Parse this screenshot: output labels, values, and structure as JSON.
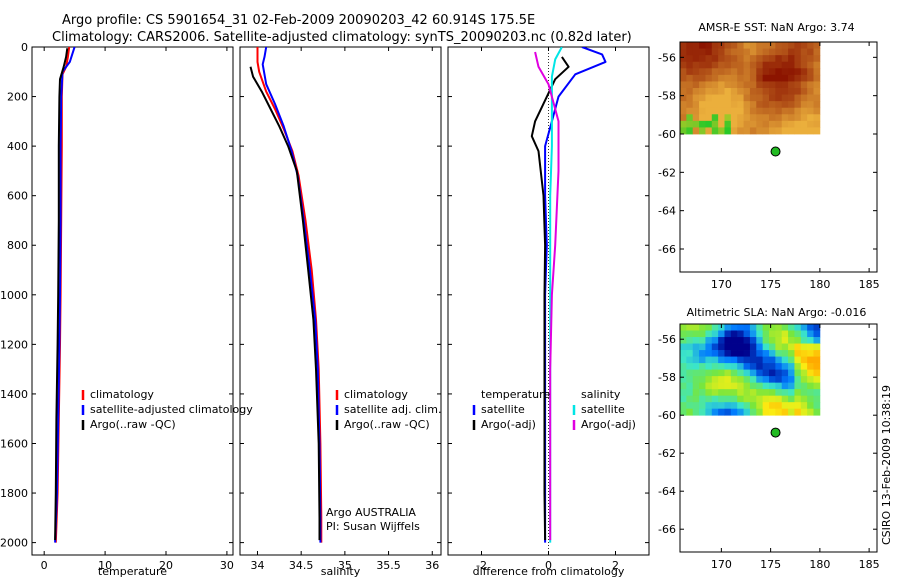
{
  "title_line1": "Argo profile: CS 5901654_31 02-Feb-2009 20090203_42 60.914S 175.5E",
  "title_line2": "Climatology: CARS2006. Satellite-adjusted climatology: synTS_20090203.nc (0.82d later)",
  "footer": "CSIRO 13-Feb-2009 10:38:19",
  "colors": {
    "red": "#ff0000",
    "blue": "#0000ff",
    "black": "#000000",
    "cyan": "#00e5e5",
    "magenta": "#e000e0",
    "dot": "#22bb22"
  },
  "chart_data": [
    {
      "type": "line",
      "id": "temperature",
      "xlabel": "temperature",
      "xlim": [
        -2,
        31
      ],
      "ylim": [
        2050,
        0
      ],
      "xticks": [
        0,
        10,
        20,
        30
      ],
      "yticks": [
        0,
        200,
        400,
        600,
        800,
        1000,
        1200,
        1400,
        1600,
        1800,
        2000
      ],
      "legend": [
        "climatology",
        "satellite-adjusted climatology",
        "Argo(..raw -QC)"
      ],
      "series": [
        {
          "name": "climatology",
          "color": "red",
          "points": [
            [
              4.1,
              0
            ],
            [
              3.9,
              40
            ],
            [
              3.6,
              80
            ],
            [
              3.0,
              110
            ],
            [
              2.9,
              200
            ],
            [
              2.9,
              400
            ],
            [
              2.8,
              700
            ],
            [
              2.7,
              1000
            ],
            [
              2.6,
              1200
            ],
            [
              2.4,
              1500
            ],
            [
              2.2,
              1800
            ],
            [
              1.9,
              2000
            ]
          ]
        },
        {
          "name": "satellite-adjusted climatology",
          "color": "blue",
          "points": [
            [
              5.0,
              0
            ],
            [
              4.6,
              30
            ],
            [
              4.2,
              60
            ],
            [
              3.0,
              100
            ],
            [
              2.8,
              200
            ],
            [
              2.7,
              400
            ],
            [
              2.7,
              700
            ],
            [
              2.6,
              1000
            ],
            [
              2.5,
              1200
            ],
            [
              2.3,
              1500
            ],
            [
              2.1,
              1800
            ],
            [
              1.8,
              2000
            ]
          ]
        },
        {
          "name": "Argo(..raw -QC)",
          "color": "black",
          "points": [
            [
              3.8,
              5
            ],
            [
              3.6,
              40
            ],
            [
              3.2,
              80
            ],
            [
              2.6,
              130
            ],
            [
              2.5,
              200
            ],
            [
              2.4,
              400
            ],
            [
              2.4,
              700
            ],
            [
              2.3,
              1000
            ],
            [
              2.2,
              1200
            ],
            [
              2.0,
              1500
            ],
            [
              1.9,
              1800
            ],
            [
              1.8,
              1990
            ]
          ]
        }
      ]
    },
    {
      "type": "line",
      "id": "salinity",
      "xlabel": "salinity",
      "xlim": [
        33.8,
        36.1
      ],
      "ylim": [
        2050,
        0
      ],
      "xticks": [
        34,
        34.5,
        35,
        35.5,
        36
      ],
      "legend": [
        "climatology",
        "satellite adj. clim.",
        "Argo(..raw -QC)"
      ],
      "annotation": [
        "Argo AUSTRALIA",
        "PI: Susan Wijffels"
      ],
      "series": [
        {
          "name": "climatology",
          "color": "red",
          "points": [
            [
              34.0,
              0
            ],
            [
              34.0,
              60
            ],
            [
              34.02,
              100
            ],
            [
              34.1,
              180
            ],
            [
              34.2,
              250
            ],
            [
              34.3,
              330
            ],
            [
              34.4,
              420
            ],
            [
              34.47,
              520
            ],
            [
              34.55,
              700
            ],
            [
              34.62,
              900
            ],
            [
              34.67,
              1100
            ],
            [
              34.7,
              1300
            ],
            [
              34.72,
              1600
            ],
            [
              34.73,
              1900
            ],
            [
              34.73,
              2000
            ]
          ]
        },
        {
          "name": "satellite adj. clim.",
          "color": "blue",
          "points": [
            [
              34.1,
              0
            ],
            [
              34.08,
              40
            ],
            [
              34.06,
              70
            ],
            [
              34.1,
              150
            ],
            [
              34.2,
              230
            ],
            [
              34.3,
              320
            ],
            [
              34.39,
              420
            ],
            [
              34.46,
              520
            ],
            [
              34.53,
              700
            ],
            [
              34.6,
              900
            ],
            [
              34.66,
              1100
            ],
            [
              34.69,
              1300
            ],
            [
              34.71,
              1600
            ],
            [
              34.72,
              1900
            ],
            [
              34.72,
              2000
            ]
          ]
        },
        {
          "name": "Argo(..raw -QC)",
          "color": "black",
          "points": [
            [
              33.92,
              80
            ],
            [
              33.95,
              120
            ],
            [
              34.05,
              180
            ],
            [
              34.15,
              250
            ],
            [
              34.25,
              320
            ],
            [
              34.35,
              400
            ],
            [
              34.45,
              500
            ],
            [
              34.52,
              700
            ],
            [
              34.58,
              900
            ],
            [
              34.64,
              1100
            ],
            [
              34.67,
              1300
            ],
            [
              34.7,
              1600
            ],
            [
              34.71,
              1900
            ],
            [
              34.71,
              1990
            ]
          ]
        }
      ]
    },
    {
      "type": "line",
      "id": "difference",
      "xlabel": "difference from climatology",
      "xlim": [
        -3,
        3
      ],
      "ylim": [
        2050,
        0
      ],
      "xticks": [
        -2,
        0,
        2
      ],
      "legend_left": [
        "temperature",
        "satellite",
        "Argo(-adj)"
      ],
      "legend_right": [
        "salinity",
        "satellite",
        "Argo(-adj)"
      ],
      "series": [
        {
          "name": "temperature satellite",
          "color": "blue",
          "points": [
            [
              1.0,
              0
            ],
            [
              1.6,
              30
            ],
            [
              1.7,
              60
            ],
            [
              0.8,
              110
            ],
            [
              0.3,
              200
            ],
            [
              0.1,
              300
            ],
            [
              -0.1,
              400
            ],
            [
              -0.1,
              600
            ],
            [
              -0.05,
              800
            ],
            [
              -0.1,
              1000
            ],
            [
              -0.1,
              1300
            ],
            [
              -0.1,
              1600
            ],
            [
              -0.1,
              1800
            ],
            [
              -0.1,
              2000
            ]
          ]
        },
        {
          "name": "temperature Argo(-adj)",
          "color": "black",
          "points": [
            [
              0.4,
              40
            ],
            [
              0.6,
              80
            ],
            [
              0.2,
              130
            ],
            [
              -0.4,
              300
            ],
            [
              -0.5,
              360
            ],
            [
              -0.3,
              420
            ],
            [
              -0.15,
              600
            ],
            [
              -0.1,
              800
            ],
            [
              -0.12,
              1000
            ],
            [
              -0.12,
              1300
            ],
            [
              -0.12,
              1600
            ],
            [
              -0.12,
              1800
            ],
            [
              -0.1,
              1990
            ]
          ]
        },
        {
          "name": "salinity satellite",
          "color": "cyan",
          "points": [
            [
              0.4,
              0
            ],
            [
              0.2,
              50
            ],
            [
              0.1,
              120
            ],
            [
              0.1,
              250
            ],
            [
              0.1,
              400
            ],
            [
              0.05,
              600
            ],
            [
              0.05,
              800
            ],
            [
              0.05,
              1000
            ],
            [
              0.05,
              1300
            ],
            [
              0.05,
              1600
            ],
            [
              0.05,
              1800
            ],
            [
              0.05,
              2000
            ]
          ]
        },
        {
          "name": "salinity Argo(-adj)",
          "color": "magenta",
          "points": [
            [
              -0.4,
              20
            ],
            [
              -0.3,
              80
            ],
            [
              0.0,
              150
            ],
            [
              0.3,
              300
            ],
            [
              0.3,
              500
            ],
            [
              0.2,
              800
            ],
            [
              0.1,
              1000
            ],
            [
              0.05,
              1300
            ],
            [
              0.05,
              1600
            ],
            [
              0.05,
              1800
            ],
            [
              0.05,
              1990
            ]
          ]
        }
      ]
    },
    {
      "type": "heatmap",
      "id": "sst_map",
      "title": "AMSR-E SST: NaN Argo: 3.74",
      "xlim": [
        165.8,
        185.8
      ],
      "ylim": [
        -67.2,
        -55.2
      ],
      "xticks": [
        170,
        175,
        180,
        185
      ],
      "yticks": [
        -56,
        -58,
        -60,
        -62,
        -64,
        -66
      ],
      "data_extent": {
        "lon": [
          165.8,
          180.0
        ],
        "lat": [
          -60.0,
          -55.2
        ]
      },
      "argo_position": {
        "lon": 175.5,
        "lat": -60.914
      }
    },
    {
      "type": "heatmap",
      "id": "sla_map",
      "title": "Altimetric SLA: NaN Argo: -0.016",
      "xlim": [
        165.8,
        185.8
      ],
      "ylim": [
        -67.2,
        -55.2
      ],
      "xticks": [
        170,
        175,
        180,
        185
      ],
      "yticks": [
        -56,
        -58,
        -60,
        -62,
        -64,
        -66
      ],
      "data_extent": {
        "lon": [
          165.8,
          180.0
        ],
        "lat": [
          -60.0,
          -55.2
        ]
      },
      "argo_position": {
        "lon": 175.5,
        "lat": -60.914
      }
    }
  ]
}
